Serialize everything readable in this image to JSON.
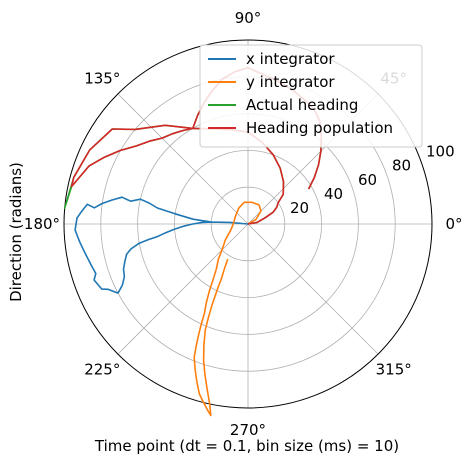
{
  "chart_data": {
    "type": "line",
    "projection": "polar",
    "xlabel": "Time point (dt = 0.1, bin size (ms) = 10)",
    "ylabel": "Direction (radians)",
    "angle_ticks": [
      "0°",
      "45°",
      "90°",
      "135°",
      "180°",
      "225°",
      "270°",
      "315°"
    ],
    "radial_ticks": [
      "20",
      "40",
      "60",
      "80",
      "100"
    ],
    "rlim": [
      0,
      100
    ],
    "grid": true,
    "legend_position": "top-right",
    "series": [
      {
        "name": "x integrator",
        "color": "#1f77b4",
        "points_deg_r": [
          [
            0,
            0
          ],
          [
            175,
            10
          ],
          [
            177,
            20
          ],
          [
            175,
            30
          ],
          [
            172,
            40
          ],
          [
            170,
            50
          ],
          [
            168,
            55
          ],
          [
            167,
            60
          ],
          [
            169,
            65
          ],
          [
            168,
            70
          ],
          [
            170,
            75
          ],
          [
            172,
            80
          ],
          [
            174,
            84
          ],
          [
            173,
            88
          ],
          [
            176,
            91
          ],
          [
            178,
            93
          ],
          [
            182,
            94
          ],
          [
            186,
            92
          ],
          [
            190,
            90
          ],
          [
            195,
            88
          ],
          [
            198,
            87
          ],
          [
            200,
            89
          ],
          [
            204,
            87
          ],
          [
            205,
            84
          ],
          [
            208,
            80
          ],
          [
            206,
            76
          ],
          [
            203,
            73
          ],
          [
            200,
            72
          ],
          [
            197,
            70
          ],
          [
            194,
            68
          ],
          [
            192,
            65
          ],
          [
            190,
            60
          ],
          [
            189,
            55
          ],
          [
            188,
            50
          ],
          [
            186,
            45
          ],
          [
            184,
            40
          ],
          [
            182,
            35
          ],
          [
            180,
            30
          ],
          [
            178,
            25
          ],
          [
            177,
            20
          ]
        ]
      },
      {
        "name": "y integrator",
        "color": "#ff7f0e",
        "points_deg_r": [
          [
            0,
            0
          ],
          [
            30,
            5
          ],
          [
            45,
            10
          ],
          [
            60,
            12
          ],
          [
            80,
            12
          ],
          [
            100,
            12
          ],
          [
            120,
            10
          ],
          [
            150,
            8
          ],
          [
            180,
            8
          ],
          [
            200,
            10
          ],
          [
            215,
            15
          ],
          [
            225,
            20
          ],
          [
            230,
            25
          ],
          [
            235,
            30
          ],
          [
            238,
            36
          ],
          [
            240,
            42
          ],
          [
            242,
            48
          ],
          [
            244,
            54
          ],
          [
            245,
            60
          ],
          [
            246,
            66
          ],
          [
            247,
            72
          ],
          [
            248,
            78
          ],
          [
            250,
            84
          ],
          [
            252,
            90
          ],
          [
            254,
            96
          ],
          [
            256,
            100
          ],
          [
            258,
            104
          ],
          [
            259,
            106
          ],
          [
            258,
            100
          ],
          [
            256,
            92
          ],
          [
            254,
            85
          ],
          [
            252,
            78
          ],
          [
            250,
            70
          ],
          [
            248,
            62
          ],
          [
            247,
            55
          ],
          [
            246,
            48
          ],
          [
            245,
            40
          ],
          [
            244,
            33
          ],
          [
            242,
            27
          ],
          [
            240,
            22
          ]
        ]
      },
      {
        "name": "Actual heading",
        "color": "#2ca02c",
        "points_deg_r": [
          [
            0,
            0
          ],
          [
            10,
            5
          ],
          [
            20,
            10
          ],
          [
            25,
            15
          ],
          [
            30,
            18
          ],
          [
            35,
            20
          ],
          [
            40,
            25
          ],
          [
            50,
            30
          ],
          [
            60,
            35
          ],
          [
            70,
            40
          ],
          [
            80,
            45
          ],
          [
            90,
            50
          ],
          [
            100,
            52
          ],
          [
            110,
            55
          ],
          [
            120,
            60
          ],
          [
            130,
            70
          ],
          [
            140,
            80
          ],
          [
            145,
            90
          ],
          [
            155,
            95
          ],
          [
            165,
            98
          ],
          [
            175,
            100
          ],
          [
            168,
            98
          ],
          [
            160,
            92
          ],
          [
            155,
            86
          ],
          [
            150,
            80
          ],
          [
            145,
            74
          ],
          [
            140,
            70
          ],
          [
            135,
            66
          ],
          [
            130,
            64
          ],
          [
            125,
            62
          ],
          [
            120,
            60
          ],
          [
            115,
            65
          ],
          [
            110,
            70
          ],
          [
            105,
            75
          ],
          [
            100,
            80
          ],
          [
            95,
            83
          ],
          [
            90,
            85
          ],
          [
            85,
            82
          ],
          [
            80,
            80
          ],
          [
            75,
            78
          ],
          [
            70,
            76
          ],
          [
            65,
            74
          ],
          [
            60,
            72
          ],
          [
            55,
            68
          ],
          [
            50,
            62
          ],
          [
            45,
            56
          ],
          [
            40,
            50
          ],
          [
            35,
            44
          ],
          [
            30,
            38
          ]
        ]
      },
      {
        "name": "Heading population",
        "color": "#d62728",
        "points_deg_r": [
          [
            0,
            0
          ],
          [
            10,
            5
          ],
          [
            20,
            10
          ],
          [
            25,
            15
          ],
          [
            30,
            18
          ],
          [
            35,
            20
          ],
          [
            40,
            25
          ],
          [
            50,
            30
          ],
          [
            60,
            35
          ],
          [
            70,
            40
          ],
          [
            80,
            45
          ],
          [
            90,
            50
          ],
          [
            100,
            52
          ],
          [
            110,
            55
          ],
          [
            120,
            60
          ],
          [
            130,
            70
          ],
          [
            140,
            80
          ],
          [
            145,
            90
          ],
          [
            155,
            95
          ],
          [
            165,
            98
          ],
          [
            168,
            98
          ],
          [
            160,
            92
          ],
          [
            155,
            86
          ],
          [
            150,
            80
          ],
          [
            145,
            74
          ],
          [
            140,
            70
          ],
          [
            135,
            66
          ],
          [
            130,
            64
          ],
          [
            125,
            62
          ],
          [
            120,
            60
          ],
          [
            115,
            65
          ],
          [
            110,
            70
          ],
          [
            105,
            75
          ],
          [
            100,
            80
          ],
          [
            95,
            83
          ],
          [
            90,
            85
          ],
          [
            85,
            82
          ],
          [
            80,
            80
          ],
          [
            75,
            78
          ],
          [
            70,
            76
          ],
          [
            65,
            74
          ],
          [
            60,
            72
          ],
          [
            55,
            68
          ],
          [
            50,
            62
          ],
          [
            45,
            56
          ],
          [
            40,
            50
          ],
          [
            35,
            44
          ],
          [
            30,
            38
          ]
        ]
      }
    ]
  }
}
